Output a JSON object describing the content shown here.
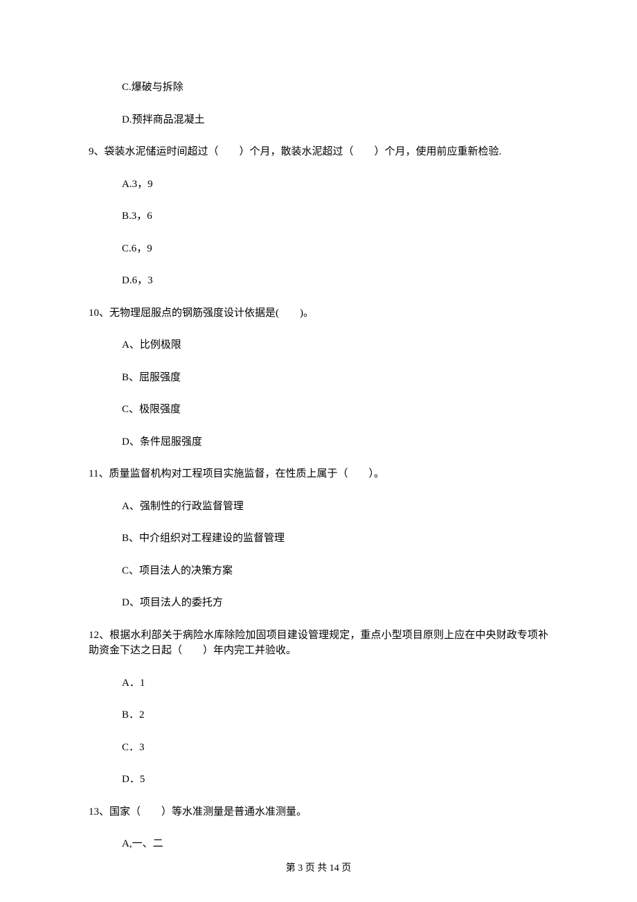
{
  "options_pre": [
    "C.爆破与拆除",
    "D.预拌商品混凝土"
  ],
  "questions": [
    {
      "text": "9、袋装水泥储运时间超过（　　）个月，散装水泥超过（　　）个月，使用前应重新检验.",
      "options": [
        "A.3，9",
        "B.3，6",
        "C.6，9",
        "D.6，3"
      ]
    },
    {
      "text": "10、无物理屈服点的钢筋强度设计依据是(　　)。",
      "options": [
        "A、比例极限",
        "B、屈服强度",
        "C、极限强度",
        "D、条件屈服强度"
      ]
    },
    {
      "text": "11、质量监督机构对工程项目实施监督，在性质上属于（　　）。",
      "options": [
        "A、强制性的行政监督管理",
        "B、中介组织对工程建设的监督管理",
        "C、项目法人的决策方案",
        "D、项目法人的委托方"
      ]
    },
    {
      "text": "12、根据水利部关于病险水库除险加固项目建设管理规定，重点小型项目原则上应在中央财政专项补助资金下达之日起（　　）年内完工并验收。",
      "options": [
        "A．1",
        "B．2",
        "C．3",
        "D．5"
      ]
    },
    {
      "text": "13、国家（　　）等水准测量是普通水准测量。",
      "options": [
        "A,一、二"
      ]
    }
  ],
  "footer": "第 3 页 共 14 页"
}
